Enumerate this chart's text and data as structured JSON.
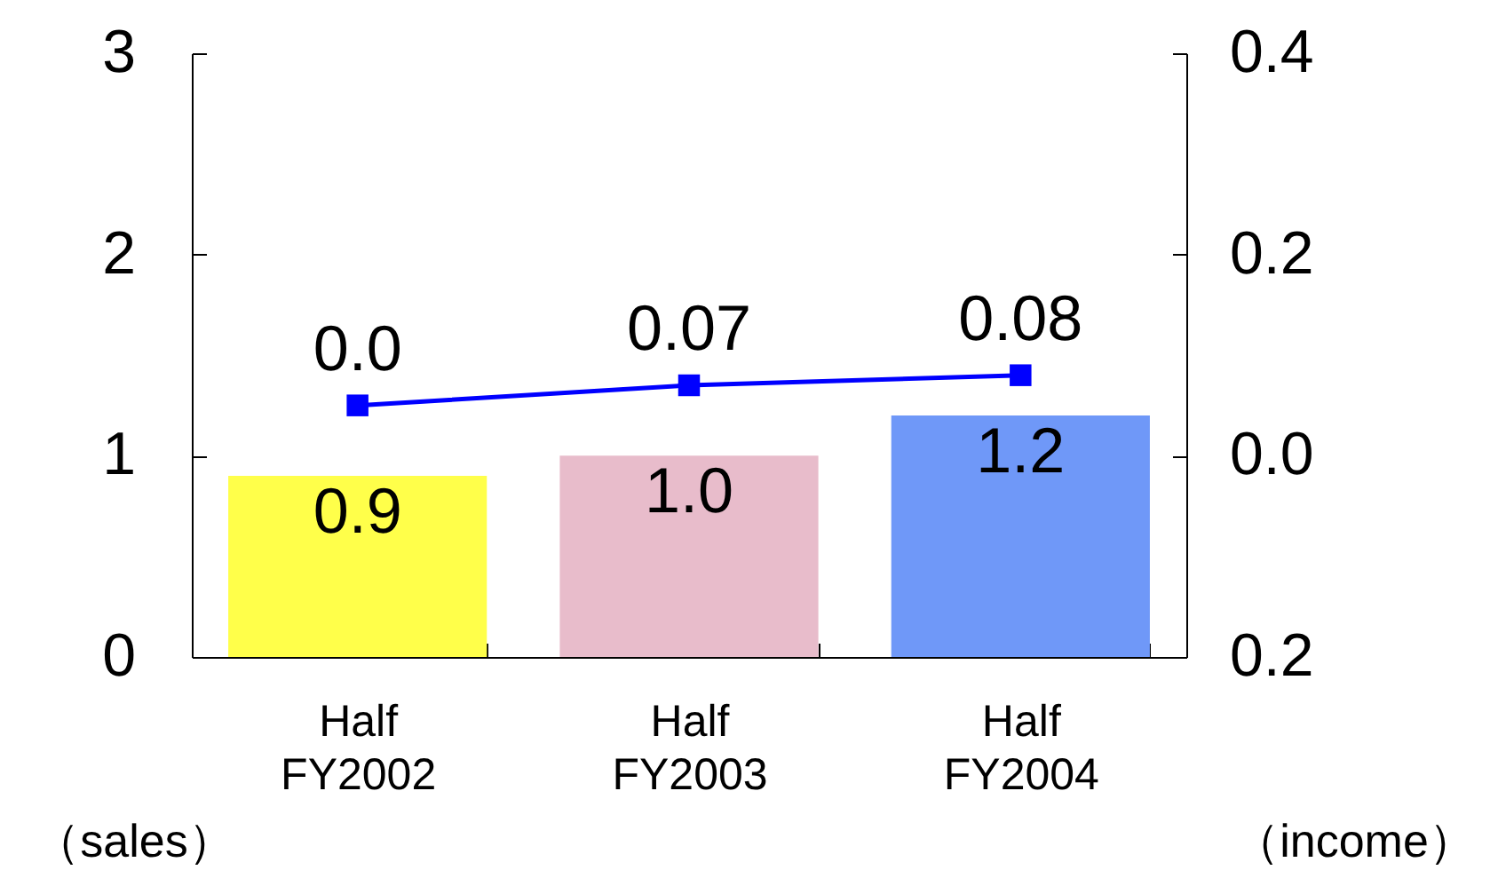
{
  "chart_data": {
    "type": "bar",
    "categories": [
      "Half FY2002",
      "Half FY2003",
      "Half FY2004"
    ],
    "ylabel": "（sales）",
    "y2label": "（income）",
    "series": [
      {
        "colors": [
          "#ffff4a",
          "#e8bccb",
          "#6f98f8"
        ],
        "values": [
          0.9,
          1.0,
          1.2
        ],
        "value_labels": [
          "0.9",
          "1.0",
          "1.2"
        ]
      },
      {
        "type": "line",
        "axis": "y2",
        "color": "#0000ff",
        "marker": "square",
        "values": [
          0.05,
          0.07,
          0.08
        ],
        "value_labels": [
          "0.0",
          "0.07",
          "0.08"
        ]
      }
    ],
    "ylim": [
      0,
      3
    ],
    "yticks": [
      0,
      1,
      2,
      3
    ],
    "y2lim": [
      -0.2,
      0.4
    ],
    "y2ticks": [
      {
        "value": -0.2,
        "label": "0.2"
      },
      {
        "value": 0,
        "label": "0.0"
      },
      0.2,
      0.4
    ],
    "grid": false
  }
}
